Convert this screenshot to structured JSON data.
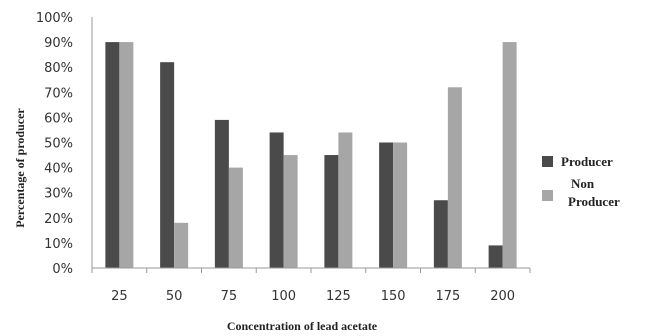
{
  "chart_data": {
    "type": "bar",
    "title": "",
    "xlabel": "Concentration of lead acetate",
    "ylabel": "Percentage of producer",
    "categories": [
      "25",
      "50",
      "75",
      "100",
      "125",
      "150",
      "175",
      "200"
    ],
    "ylim": [
      0,
      100
    ],
    "yticks": [
      "0%",
      "10%",
      "20%",
      "30%",
      "40%",
      "50%",
      "60%",
      "70%",
      "80%",
      "90%",
      "100%"
    ],
    "grid": false,
    "legend_position": "right",
    "series": [
      {
        "name": "Producer",
        "color": "#4a4a4a",
        "values": [
          90,
          82,
          59,
          54,
          45,
          50,
          27,
          9
        ]
      },
      {
        "name": "Non Producer",
        "color": "#a6a6a6",
        "values": [
          90,
          18,
          40,
          45,
          54,
          50,
          72,
          90
        ]
      }
    ],
    "legend_labels": {
      "producer": "Producer",
      "non_producer_line1": "Non",
      "non_producer_line2": "Producer"
    }
  }
}
